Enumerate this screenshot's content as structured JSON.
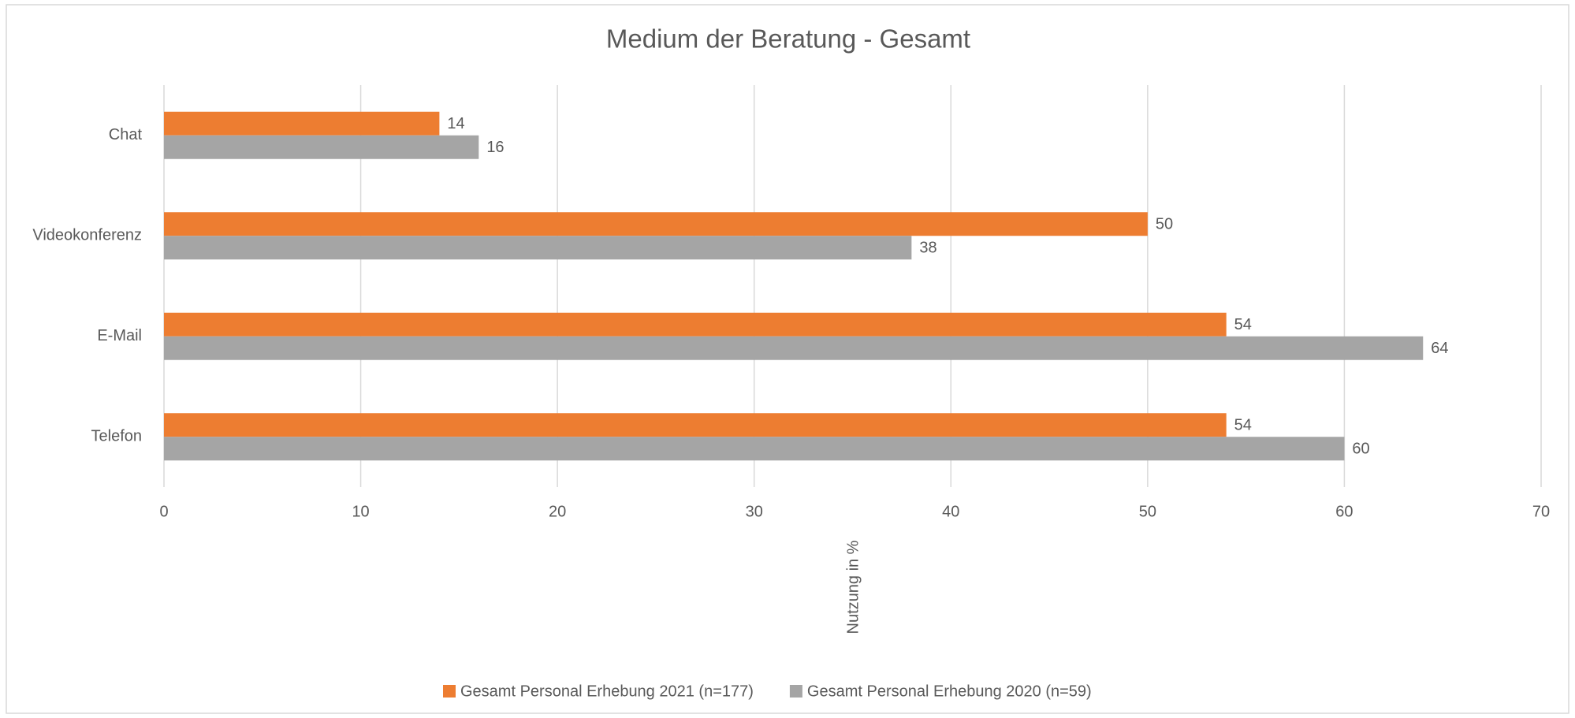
{
  "chart_data": {
    "type": "bar",
    "orientation": "horizontal",
    "title": "Medium der Beratung - Gesamt",
    "x_label": "Nutzung in %",
    "categories": [
      "Chat",
      "Videokonferenz",
      "E-Mail",
      "Telefon"
    ],
    "series": [
      {
        "name": "Gesamt Personal Erhebung 2021 (n=177)",
        "color": "#ed7d31",
        "values": [
          14,
          50,
          54,
          54
        ]
      },
      {
        "name": "Gesamt Personal Erhebung 2020 (n=59)",
        "color": "#a5a5a5",
        "values": [
          16,
          38,
          64,
          60
        ]
      }
    ],
    "xlim": [
      0,
      70
    ],
    "xticks": [
      0,
      10,
      20,
      30,
      40,
      50,
      60,
      70
    ],
    "grid": true,
    "legend": "bottom"
  }
}
